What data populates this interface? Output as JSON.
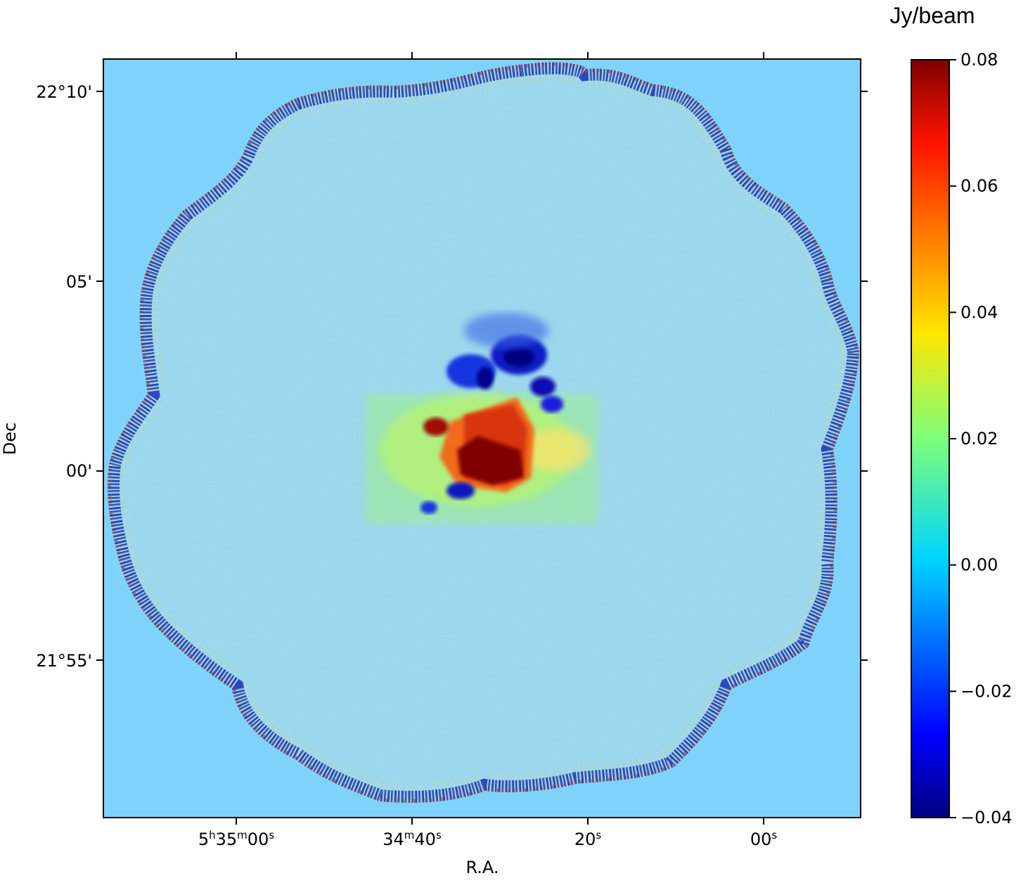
{
  "chart_data": {
    "type": "heatmap",
    "xlabel": "R.A.",
    "ylabel": "Dec",
    "colorbar_label": "Jy/beam",
    "colormap": "jet",
    "background_color": "#7fd3fb",
    "x_ticks": [
      {
        "h": "5",
        "hs": "h",
        "m": "35",
        "ms": "m",
        "s": "00",
        "ss": "s"
      },
      {
        "h": "",
        "hs": "",
        "m": "34",
        "ms": "m",
        "s": "40",
        "ss": "s"
      },
      {
        "h": "",
        "hs": "",
        "m": "",
        "ms": "",
        "s": "20",
        "ss": "s"
      },
      {
        "h": "",
        "hs": "",
        "m": "",
        "ms": "",
        "s": "00",
        "ss": "s"
      }
    ],
    "y_ticks": [
      "22°10'",
      "05'",
      "00'",
      "21°55'"
    ],
    "colorbar_range": [
      -0.04,
      0.08
    ],
    "colorbar_ticks": [
      "0.08",
      "0.06",
      "0.04",
      "0.02",
      "0.00",
      "−0.02",
      "−0.04"
    ],
    "colorbar_tick_values": [
      0.08,
      0.06,
      0.04,
      0.02,
      0.0,
      -0.02,
      -0.04
    ]
  }
}
